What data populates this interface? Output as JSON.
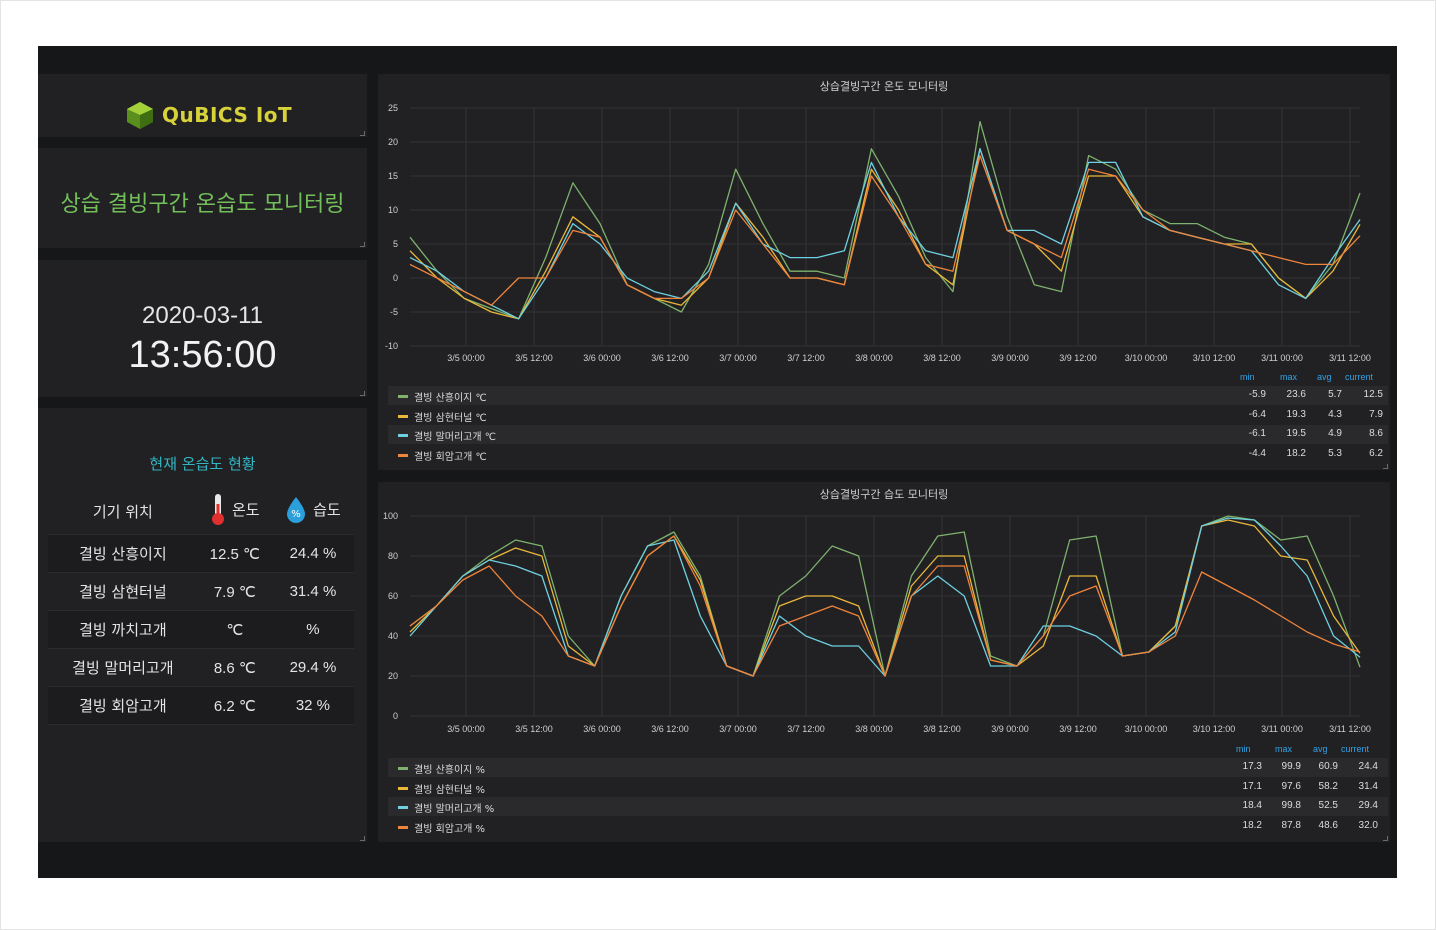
{
  "logo": {
    "brand": "QuBICS IoT",
    "icon": "cube-logo-icon"
  },
  "dashboard_title": "상습 결빙구간 온습도 모니터링",
  "clock": {
    "date": "2020-03-11",
    "time": "13:56:00"
  },
  "status": {
    "title": "현재 온습도 현황",
    "headers": {
      "location": "기기 위치",
      "temp": "온도",
      "humidity": "습도"
    },
    "rows": [
      {
        "location": "결빙 산흥이지",
        "temp": "12.5 ℃",
        "humidity": "24.4 %"
      },
      {
        "location": "결빙 삼현터널",
        "temp": "7.9 ℃",
        "humidity": "31.4 %"
      },
      {
        "location": "결빙 까치고개",
        "temp": "℃",
        "humidity": "%"
      },
      {
        "location": "결빙 말머리고개",
        "temp": "8.6 ℃",
        "humidity": "29.4 %"
      },
      {
        "location": "결빙 회암고개",
        "temp": "6.2 ℃",
        "humidity": "32 %"
      }
    ]
  },
  "colors": {
    "green": "#7eb26d",
    "yellow": "#eab839",
    "cyan": "#6ed0e0",
    "orange": "#ef843c"
  },
  "legend_headers": {
    "min": "min",
    "max": "max",
    "avg": "avg",
    "current": "current"
  },
  "chart_data": [
    {
      "type": "line",
      "title": "상습결빙구간 온도 모니터링",
      "ylim": [
        -10,
        25
      ],
      "yticks": [
        "25",
        "20",
        "15",
        "10",
        "5",
        "0",
        "-5",
        "-10"
      ],
      "xticks": [
        "3/5 00:00",
        "3/5 12:00",
        "3/6 00:00",
        "3/6 12:00",
        "3/7 00:00",
        "3/7 12:00",
        "3/8 00:00",
        "3/8 12:00",
        "3/9 00:00",
        "3/9 12:00",
        "3/10 00:00",
        "3/10 12:00",
        "3/11 00:00",
        "3/11 12:00"
      ],
      "series": [
        {
          "name": "결빙 산흥이지 ℃",
          "color": "#7eb26d",
          "min": "-5.9",
          "max": "23.6",
          "avg": "5.7",
          "current": "12.5",
          "values": [
            6,
            1,
            -3,
            -4.5,
            -6,
            3,
            14,
            8,
            -1,
            -3,
            -5,
            2,
            16,
            8,
            1,
            1,
            0,
            19,
            12,
            3,
            -2,
            23,
            9,
            -1,
            -2,
            18,
            16,
            10,
            8,
            8,
            6,
            5,
            0,
            -3,
            2,
            12.5
          ]
        },
        {
          "name": "결빙 삼현터널 ℃",
          "color": "#eab839",
          "min": "-6.4",
          "max": "19.3",
          "avg": "4.3",
          "current": "7.9",
          "values": [
            4,
            0,
            -3,
            -5,
            -6,
            1,
            9,
            6,
            -1,
            -3,
            -4,
            0,
            11,
            6,
            0,
            0,
            -1,
            16,
            10,
            2,
            -1,
            19,
            7,
            5,
            1,
            15,
            15,
            9,
            7,
            6,
            5,
            5,
            0,
            -3,
            1,
            7.9
          ]
        },
        {
          "name": "결빙 말머리고개 ℃",
          "color": "#6ed0e0",
          "min": "-6.1",
          "max": "19.5",
          "avg": "4.9",
          "current": "8.6",
          "values": [
            3,
            1,
            -2,
            -4,
            -6,
            0,
            8,
            5,
            0,
            -2,
            -3,
            1,
            11,
            5,
            3,
            3,
            4,
            17,
            9,
            4,
            3,
            19,
            7,
            7,
            5,
            17,
            17,
            9,
            7,
            6,
            5,
            4,
            -1,
            -3,
            3,
            8.6
          ]
        },
        {
          "name": "결빙 회암고개 ℃",
          "color": "#ef843c",
          "min": "-4.4",
          "max": "18.2",
          "avg": "5.3",
          "current": "6.2",
          "values": [
            2,
            0,
            -2,
            -4,
            0,
            0,
            7,
            6,
            -1,
            -3,
            -3,
            0,
            10,
            5,
            0,
            0,
            -1,
            15,
            9,
            2,
            1,
            18,
            7,
            5,
            3,
            16,
            15,
            10,
            7,
            6,
            5,
            4,
            3,
            2,
            2,
            6.2
          ]
        }
      ]
    },
    {
      "type": "line",
      "title": "상습결빙구간 습도 모니터링",
      "ylim": [
        0,
        100
      ],
      "yticks": [
        "100",
        "80",
        "60",
        "40",
        "20",
        "0"
      ],
      "xticks": [
        "3/5 00:00",
        "3/5 12:00",
        "3/6 00:00",
        "3/6 12:00",
        "3/7 00:00",
        "3/7 12:00",
        "3/8 00:00",
        "3/8 12:00",
        "3/9 00:00",
        "3/9 12:00",
        "3/10 00:00",
        "3/10 12:00",
        "3/11 00:00",
        "3/11 12:00"
      ],
      "series": [
        {
          "name": "결빙 산흥이지 %",
          "color": "#7eb26d",
          "min": "17.3",
          "max": "99.9",
          "avg": "60.9",
          "current": "24.4",
          "values": [
            45,
            55,
            70,
            80,
            88,
            85,
            40,
            25,
            60,
            85,
            92,
            70,
            25,
            20,
            60,
            70,
            85,
            80,
            20,
            70,
            90,
            92,
            30,
            25,
            40,
            88,
            90,
            30,
            32,
            45,
            95,
            100,
            98,
            88,
            90,
            60,
            24.4
          ]
        },
        {
          "name": "결빙 삼현터널 %",
          "color": "#eab839",
          "min": "17.1",
          "max": "97.6",
          "avg": "58.2",
          "current": "31.4",
          "values": [
            42,
            55,
            70,
            78,
            84,
            80,
            35,
            25,
            55,
            80,
            90,
            68,
            25,
            20,
            55,
            60,
            60,
            55,
            20,
            65,
            80,
            80,
            28,
            25,
            35,
            70,
            70,
            30,
            32,
            45,
            95,
            98,
            95,
            80,
            78,
            50,
            31.4
          ]
        },
        {
          "name": "결빙 말머리고개 %",
          "color": "#6ed0e0",
          "min": "18.4",
          "max": "99.8",
          "avg": "52.5",
          "current": "29.4",
          "values": [
            40,
            55,
            70,
            78,
            75,
            70,
            30,
            25,
            60,
            85,
            88,
            50,
            25,
            20,
            50,
            40,
            35,
            35,
            20,
            60,
            70,
            60,
            25,
            25,
            45,
            45,
            40,
            30,
            32,
            42,
            95,
            99,
            98,
            85,
            70,
            40,
            29.4
          ]
        },
        {
          "name": "결빙 회암고개 %",
          "color": "#ef843c",
          "min": "18.2",
          "max": "87.8",
          "avg": "48.6",
          "current": "32.0",
          "values": [
            45,
            55,
            68,
            75,
            60,
            50,
            30,
            25,
            55,
            80,
            90,
            65,
            25,
            20,
            45,
            50,
            55,
            50,
            20,
            60,
            75,
            75,
            28,
            25,
            40,
            60,
            65,
            30,
            32,
            40,
            72,
            65,
            58,
            50,
            42,
            36,
            32.0
          ]
        }
      ]
    }
  ]
}
